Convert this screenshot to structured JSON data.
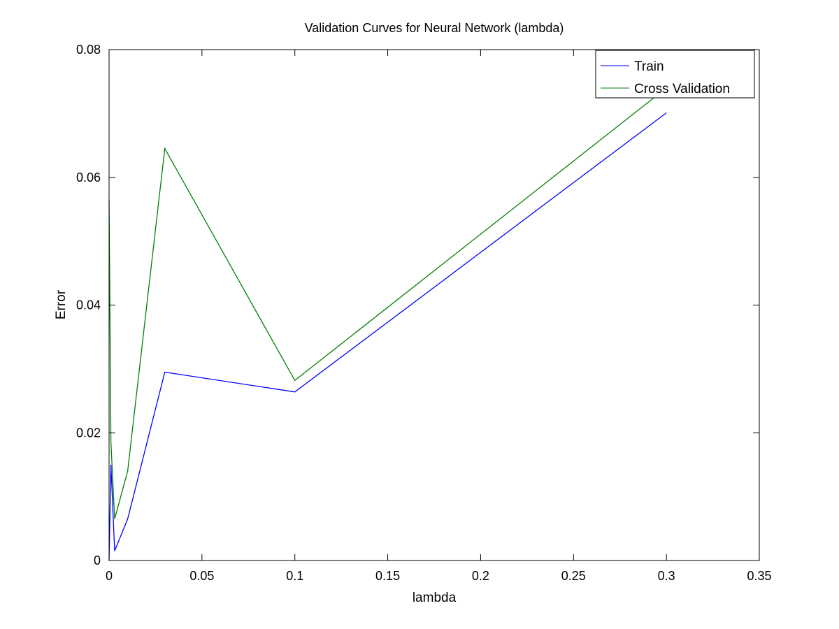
{
  "chart_data": {
    "type": "line",
    "title": "Validation Curves for Neural Network (lambda)",
    "xlabel": "lambda",
    "ylabel": "Error",
    "xlim": [
      0,
      0.35
    ],
    "ylim": [
      0,
      0.08
    ],
    "xticks": [
      0,
      0.05,
      0.1,
      0.15,
      0.2,
      0.25,
      0.3,
      0.35
    ],
    "xtick_labels": [
      "0",
      "0.05",
      "0.1",
      "0.15",
      "0.2",
      "0.25",
      "0.3",
      "0.35"
    ],
    "yticks": [
      0,
      0.02,
      0.04,
      0.06,
      0.08
    ],
    "ytick_labels": [
      "0",
      "0.02",
      "0.04",
      "0.06",
      "0.08"
    ],
    "grid": false,
    "legend_position": "top-right",
    "series": [
      {
        "name": "Train",
        "color": "#0000ff",
        "x": [
          0,
          0.001,
          0.003,
          0.01,
          0.03,
          0.1,
          0.3
        ],
        "y": [
          0.0,
          0.015,
          0.0015,
          0.0065,
          0.0295,
          0.0264,
          0.0701
        ]
      },
      {
        "name": "Cross Validation",
        "color": "#008000",
        "x": [
          0,
          0.001,
          0.003,
          0.01,
          0.03,
          0.1,
          0.3
        ],
        "y": [
          0.0565,
          0.0185,
          0.0065,
          0.014,
          0.0645,
          0.0282,
          0.074
        ]
      }
    ]
  }
}
